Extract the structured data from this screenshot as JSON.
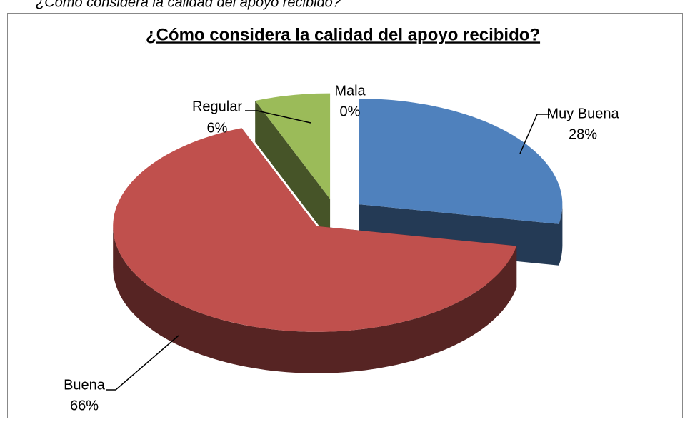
{
  "caption": "¿Cómo considera la calidad del apoyo recibido?",
  "chart_data": {
    "type": "pie3d",
    "title": "¿Cómo considera la calidad del apoyo recibido?",
    "categories": [
      "Muy Buena",
      "Buena",
      "Regular",
      "Mala"
    ],
    "values": [
      28,
      66,
      6,
      0
    ],
    "value_labels": [
      "28%",
      "66%",
      "6%",
      "0%"
    ],
    "colors": [
      "#4f81bd",
      "#c0504d",
      "#9bbb59",
      "#8064a2"
    ]
  }
}
